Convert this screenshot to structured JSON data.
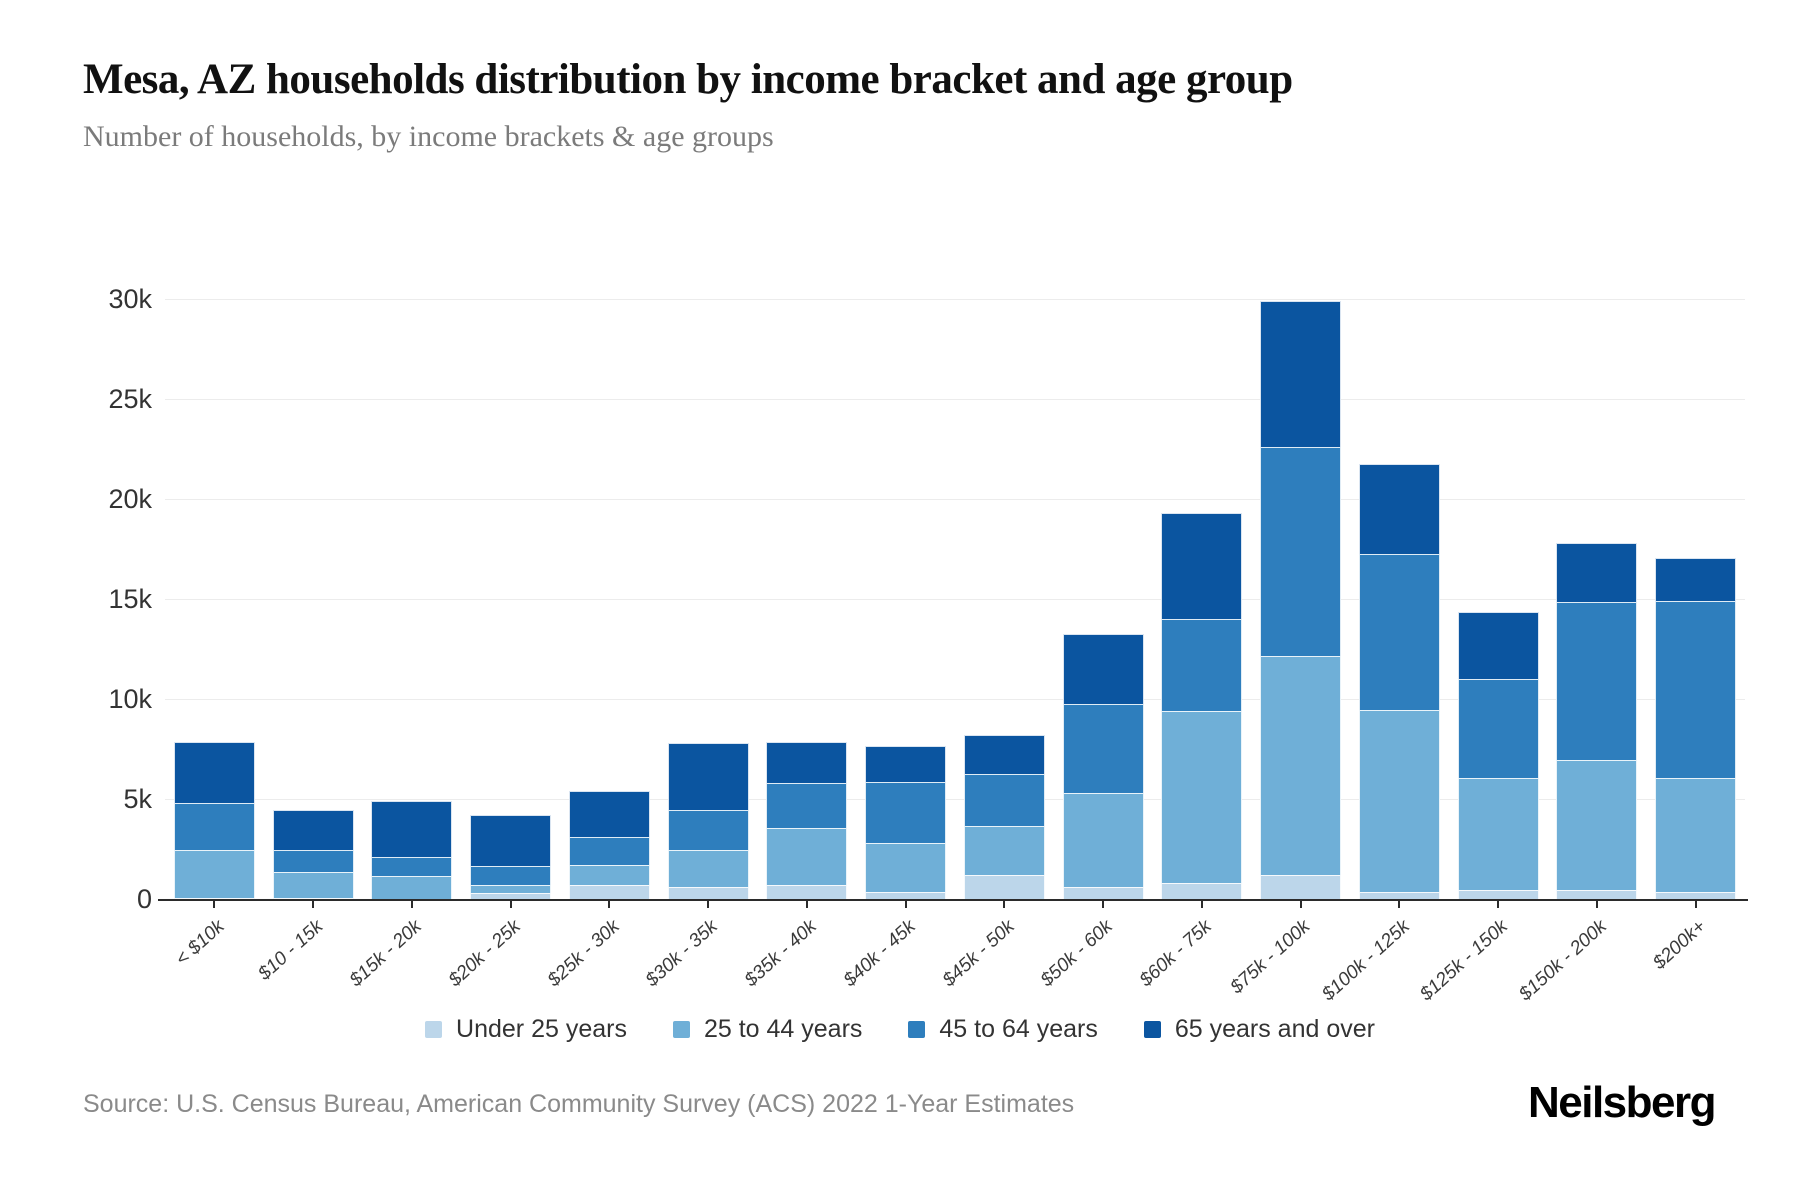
{
  "header": {
    "title": "Mesa, AZ households distribution by income bracket and age group",
    "subtitle": "Number of households, by income brackets & age groups"
  },
  "source": {
    "label": "Source: U.S. Census Bureau, American Community Survey (ACS) 2022 1-Year Estimates"
  },
  "brand": {
    "logo_text": "Neilsberg"
  },
  "chart_data": {
    "type": "bar",
    "stacked": true,
    "title": "Mesa, AZ households distribution by income bracket and age group",
    "xlabel": "",
    "ylabel": "Number of households",
    "ylim": [
      0,
      30000
    ],
    "grid": "horizontal",
    "legend_position": "bottom",
    "yticks": [
      {
        "value": 0,
        "label": "0"
      },
      {
        "value": 5000,
        "label": "5k"
      },
      {
        "value": 10000,
        "label": "10k"
      },
      {
        "value": 15000,
        "label": "15k"
      },
      {
        "value": 20000,
        "label": "20k"
      },
      {
        "value": 25000,
        "label": "25k"
      },
      {
        "value": 30000,
        "label": "30k"
      }
    ],
    "categories": [
      "< $10k",
      "$10 - 15k",
      "$15k - 20k",
      "$20k - 25k",
      "$25k - 30k",
      "$30k - 35k",
      "$35k - 40k",
      "$40k - 45k",
      "$45k - 50k",
      "$50k - 60k",
      "$60k - 75k",
      "$75k - 100k",
      "$100k - 125k",
      "$125k - 150k",
      "$150k - 200k",
      "$200k+"
    ],
    "series": [
      {
        "name": "Under 25 years",
        "color": "#bcd6ea",
        "values": [
          100,
          100,
          50,
          350,
          750,
          650,
          750,
          400,
          1250,
          650,
          850,
          1250,
          400,
          500,
          500,
          400
        ]
      },
      {
        "name": "25 to 44 years",
        "color": "#6fafd7",
        "values": [
          2400,
          1300,
          1150,
          400,
          1000,
          1850,
          2850,
          2450,
          2450,
          4700,
          8600,
          10950,
          9100,
          5600,
          6500,
          5700
        ]
      },
      {
        "name": "45 to 64 years",
        "color": "#2e7ebd",
        "values": [
          2350,
          1100,
          950,
          950,
          1400,
          2000,
          2250,
          3050,
          2600,
          4450,
          4600,
          10450,
          7800,
          4950,
          7900,
          8850
        ]
      },
      {
        "name": "65 years and over",
        "color": "#0b55a0",
        "values": [
          3050,
          2000,
          2800,
          2550,
          2300,
          3350,
          2050,
          1800,
          1950,
          3500,
          5300,
          7300,
          4500,
          3350,
          2950,
          2150
        ]
      }
    ]
  }
}
